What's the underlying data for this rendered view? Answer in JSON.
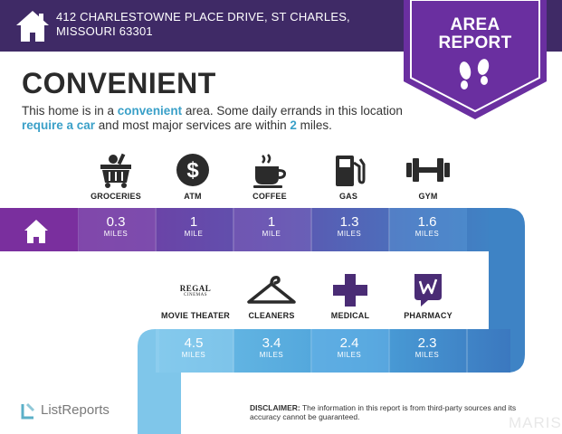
{
  "header": {
    "address": "412 CHARLESTOWNE PLACE DRIVE, ST CHARLES, MISSOURI 63301"
  },
  "banner": {
    "title_line1": "AREA",
    "title_line2": "REPORT"
  },
  "main": {
    "heading": "CONVENIENT",
    "summary": {
      "part1": "This home is in a ",
      "hl1": "convenient",
      "part2": " area. Some daily errands in this location ",
      "hl2": "require a car",
      "part3": " and most major services are within ",
      "hl3": "2",
      "part4": " miles."
    }
  },
  "amenities_row1": [
    {
      "label": "GROCERIES",
      "icon": "groceries-icon",
      "distance": "0.3",
      "unit": "MILES"
    },
    {
      "label": "ATM",
      "icon": "atm-icon",
      "distance": "1",
      "unit": "MILE"
    },
    {
      "label": "COFFEE",
      "icon": "coffee-icon",
      "distance": "1",
      "unit": "MILE"
    },
    {
      "label": "GAS",
      "icon": "gas-icon",
      "distance": "1.3",
      "unit": "MILES"
    },
    {
      "label": "GYM",
      "icon": "gym-icon",
      "distance": "1.6",
      "unit": "MILES"
    }
  ],
  "amenities_row2": [
    {
      "label": "MOVIE THEATER",
      "icon": "regal-cinemas-logo",
      "logo_line1": "REGAL",
      "logo_line2": "CINEMAS",
      "distance": "4.5",
      "unit": "MILES"
    },
    {
      "label": "CLEANERS",
      "icon": "hanger-icon",
      "distance": "3.4",
      "unit": "MILES"
    },
    {
      "label": "MEDICAL",
      "icon": "medical-cross-icon",
      "distance": "2.4",
      "unit": "MILES"
    },
    {
      "label": "PHARMACY",
      "icon": "walgreens-icon",
      "distance": "2.3",
      "unit": "MILES"
    }
  ],
  "footer": {
    "logo_text": "ListReports",
    "disclaimer_bold": "DISCLAIMER:",
    "disclaimer_text": " The information in this report is from third-party sources and its accuracy cannot be guaranteed.",
    "watermark": "MARIS"
  },
  "colors": {
    "header_bg": "#3f2a66",
    "banner": "#6a2fa0",
    "accent_blue": "#3aa0c8",
    "path_purple": "#7a3fa6",
    "path_blue": "#3e85c6",
    "path_light": "#7fc3e8"
  }
}
